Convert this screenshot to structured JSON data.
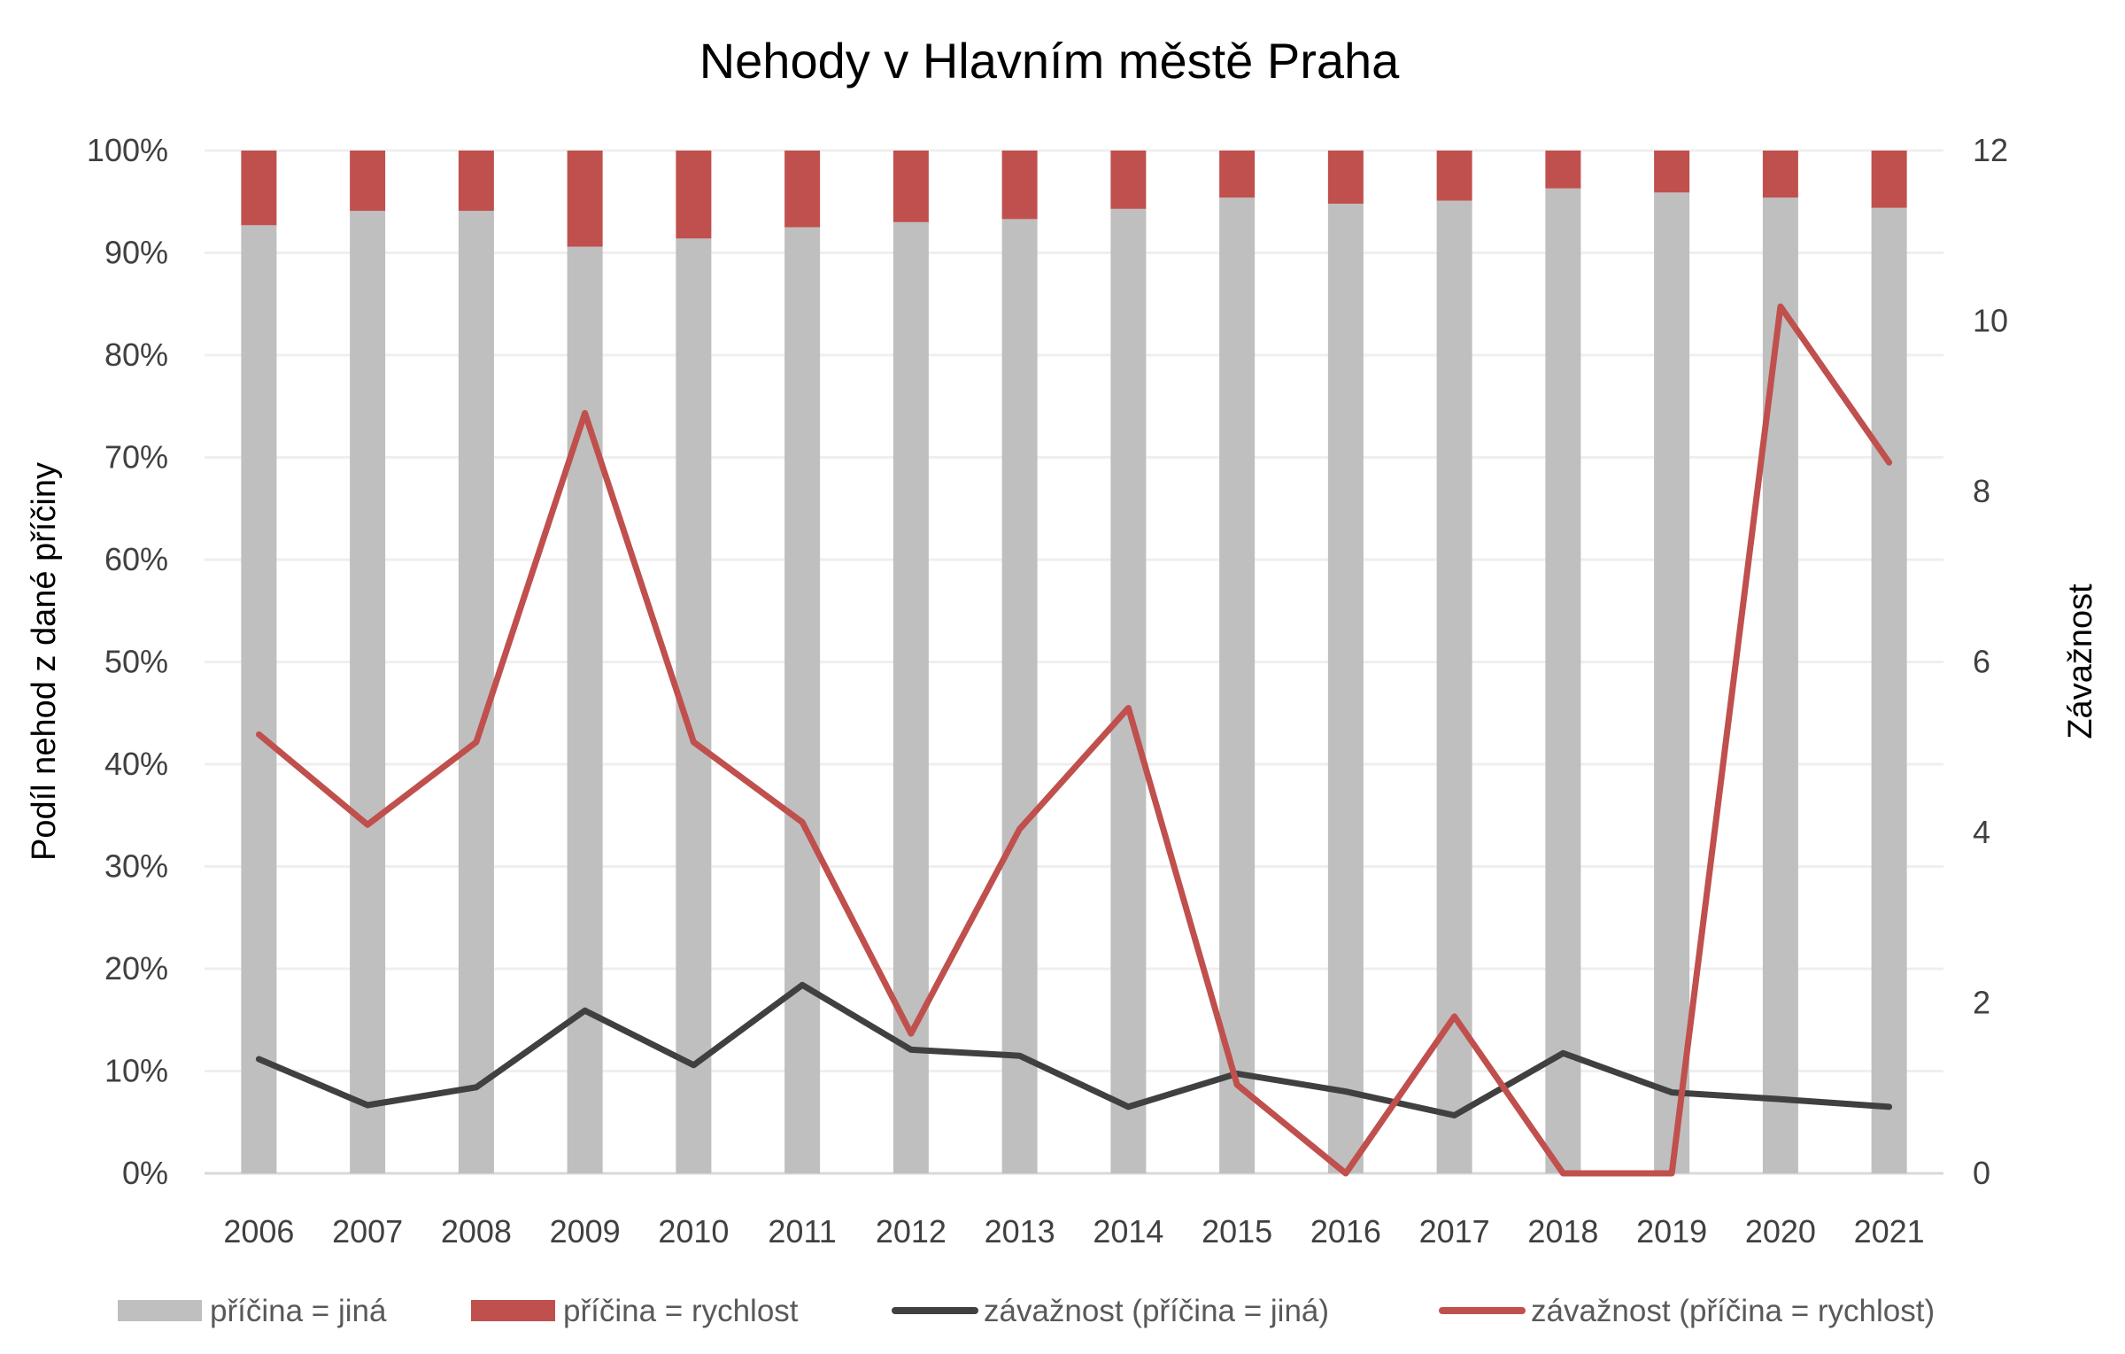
{
  "chart_data": {
    "type": "bar+line",
    "title": "Nehody v Hlavním městě Praha",
    "xlabel": "",
    "ylabel": "Podíl nehod z dané příčiny",
    "y2label": "Závažnost",
    "ylim": [
      0,
      100
    ],
    "y2lim": [
      0,
      12
    ],
    "y_ticks": [
      "0%",
      "10%",
      "20%",
      "30%",
      "40%",
      "50%",
      "60%",
      "70%",
      "80%",
      "90%",
      "100%"
    ],
    "y2_ticks": [
      "0",
      "2",
      "4",
      "6",
      "8",
      "10",
      "12"
    ],
    "grid": true,
    "legend_position": "bottom",
    "categories": [
      "2006",
      "2007",
      "2008",
      "2009",
      "2010",
      "2011",
      "2012",
      "2013",
      "2014",
      "2015",
      "2016",
      "2017",
      "2018",
      "2019",
      "2020",
      "2021"
    ],
    "series": [
      {
        "name": "příčina = jiná",
        "type": "stacked-bar-100",
        "axis": "left",
        "color": "#BFBFBF",
        "values": [
          92.7,
          94.1,
          94.1,
          90.6,
          91.4,
          92.5,
          93.0,
          93.3,
          94.3,
          95.4,
          94.8,
          95.1,
          96.3,
          95.9,
          95.4,
          94.4
        ]
      },
      {
        "name": "příčina = rychlost",
        "type": "stacked-bar-100",
        "axis": "left",
        "color": "#C0504D",
        "values": [
          7.3,
          5.9,
          5.9,
          9.4,
          8.6,
          7.5,
          7.0,
          6.7,
          5.7,
          4.6,
          5.2,
          4.9,
          3.7,
          4.1,
          4.6,
          5.6
        ]
      },
      {
        "name": "závažnost (příčina = jiná)",
        "type": "line",
        "axis": "right",
        "color": "#404040",
        "values": [
          1.34,
          0.8,
          1.01,
          1.91,
          1.27,
          2.21,
          1.45,
          1.38,
          0.78,
          1.17,
          0.96,
          0.68,
          1.41,
          0.95,
          0.87,
          0.78
        ]
      },
      {
        "name": "závažnost (příčina = rychlost)",
        "type": "line",
        "axis": "right",
        "color": "#C0504D",
        "values": [
          5.15,
          4.09,
          5.06,
          8.92,
          5.06,
          4.12,
          1.64,
          4.04,
          5.46,
          1.04,
          0,
          1.84,
          0,
          0,
          10.17,
          8.34
        ]
      }
    ]
  }
}
